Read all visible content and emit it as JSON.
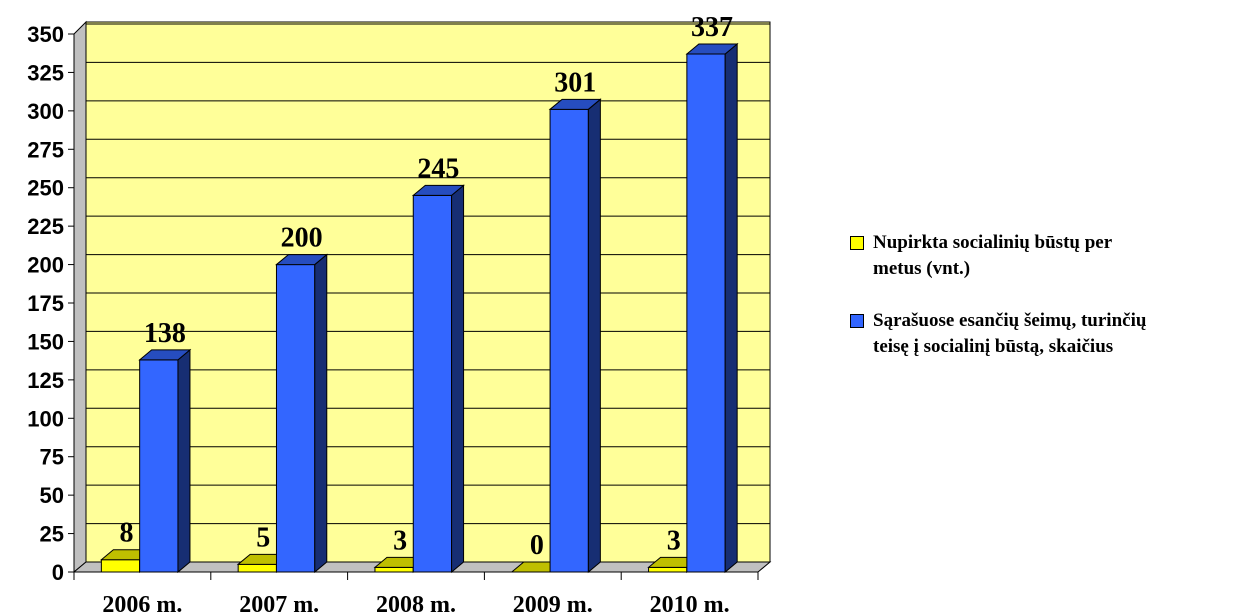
{
  "chart_data": {
    "type": "bar",
    "categories": [
      "2006 m.",
      "2007 m.",
      "2008 m.",
      "2009 m.",
      "2010 m."
    ],
    "series": [
      {
        "name": "Nupirkta socialinių būstų per metus (vnt.)",
        "values": [
          8,
          5,
          3,
          0,
          3
        ],
        "color": "#ffff00"
      },
      {
        "name": "Sąrašuose esančių šeimų, turinčių teisę į socialinį būstą,  skaičius",
        "values": [
          138,
          200,
          245,
          301,
          337
        ],
        "color": "#3366ff"
      }
    ],
    "ylim": [
      0,
      350
    ],
    "yticks": [
      "0",
      "25",
      "50",
      "75",
      "100",
      "125",
      "150",
      "175",
      "200",
      "225",
      "250",
      "275",
      "300",
      "325",
      "350"
    ],
    "grid": true,
    "legend_position": "right",
    "plot_background": "#ffff99"
  },
  "legend": {
    "items": [
      {
        "label_line1": "Nupirkta socialinių būstų per",
        "label_line2": "metus (vnt.)"
      },
      {
        "label_line1": "Sąrašuose esančių šeimų, turinčių",
        "label_line2": "teisę į socialinį būstą,  skaičius"
      }
    ]
  }
}
